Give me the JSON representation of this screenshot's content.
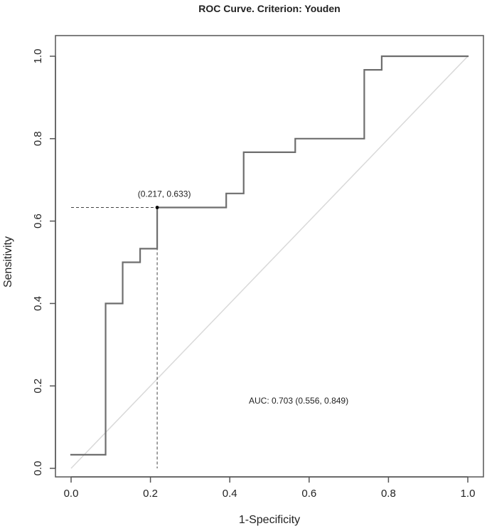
{
  "chart_data": {
    "type": "line",
    "title": "ROC Curve. Criterion: Youden",
    "xlabel": "1-Specificity",
    "ylabel": "Sensitivity",
    "xlim": [
      0,
      1
    ],
    "ylim": [
      0,
      1
    ],
    "x_ticks": [
      "0.0",
      "0.2",
      "0.4",
      "0.6",
      "0.8",
      "1.0"
    ],
    "y_ticks": [
      "0.0",
      "0.2",
      "0.4",
      "0.6",
      "0.8",
      "1.0"
    ],
    "grid": false,
    "legend": "none",
    "series": [
      {
        "x": [
          0.0,
          0.087,
          0.087,
          0.13,
          0.13,
          0.174,
          0.174,
          0.217,
          0.217,
          0.391,
          0.391,
          0.435,
          0.435,
          0.565,
          0.565,
          0.739,
          0.739,
          0.783,
          0.783,
          1.0
        ],
        "y": [
          0.033,
          0.033,
          0.4,
          0.4,
          0.5,
          0.5,
          0.533,
          0.533,
          0.633,
          0.633,
          0.667,
          0.667,
          0.767,
          0.767,
          0.8,
          0.8,
          0.967,
          0.967,
          1.0,
          1.0
        ]
      }
    ],
    "reference_line": {
      "x": [
        0,
        1
      ],
      "y": [
        0,
        1
      ]
    },
    "optimal_point": {
      "x": 0.217,
      "y": 0.633,
      "label": "(0.217, 0.633)"
    },
    "auc_label": "AUC: 0.703 (0.556, 0.849)",
    "colors": {
      "curve": "#6e6e6e",
      "reference": "#d9d9d9",
      "frame": "#555555",
      "point": "#000000",
      "guide": "#444444"
    }
  }
}
